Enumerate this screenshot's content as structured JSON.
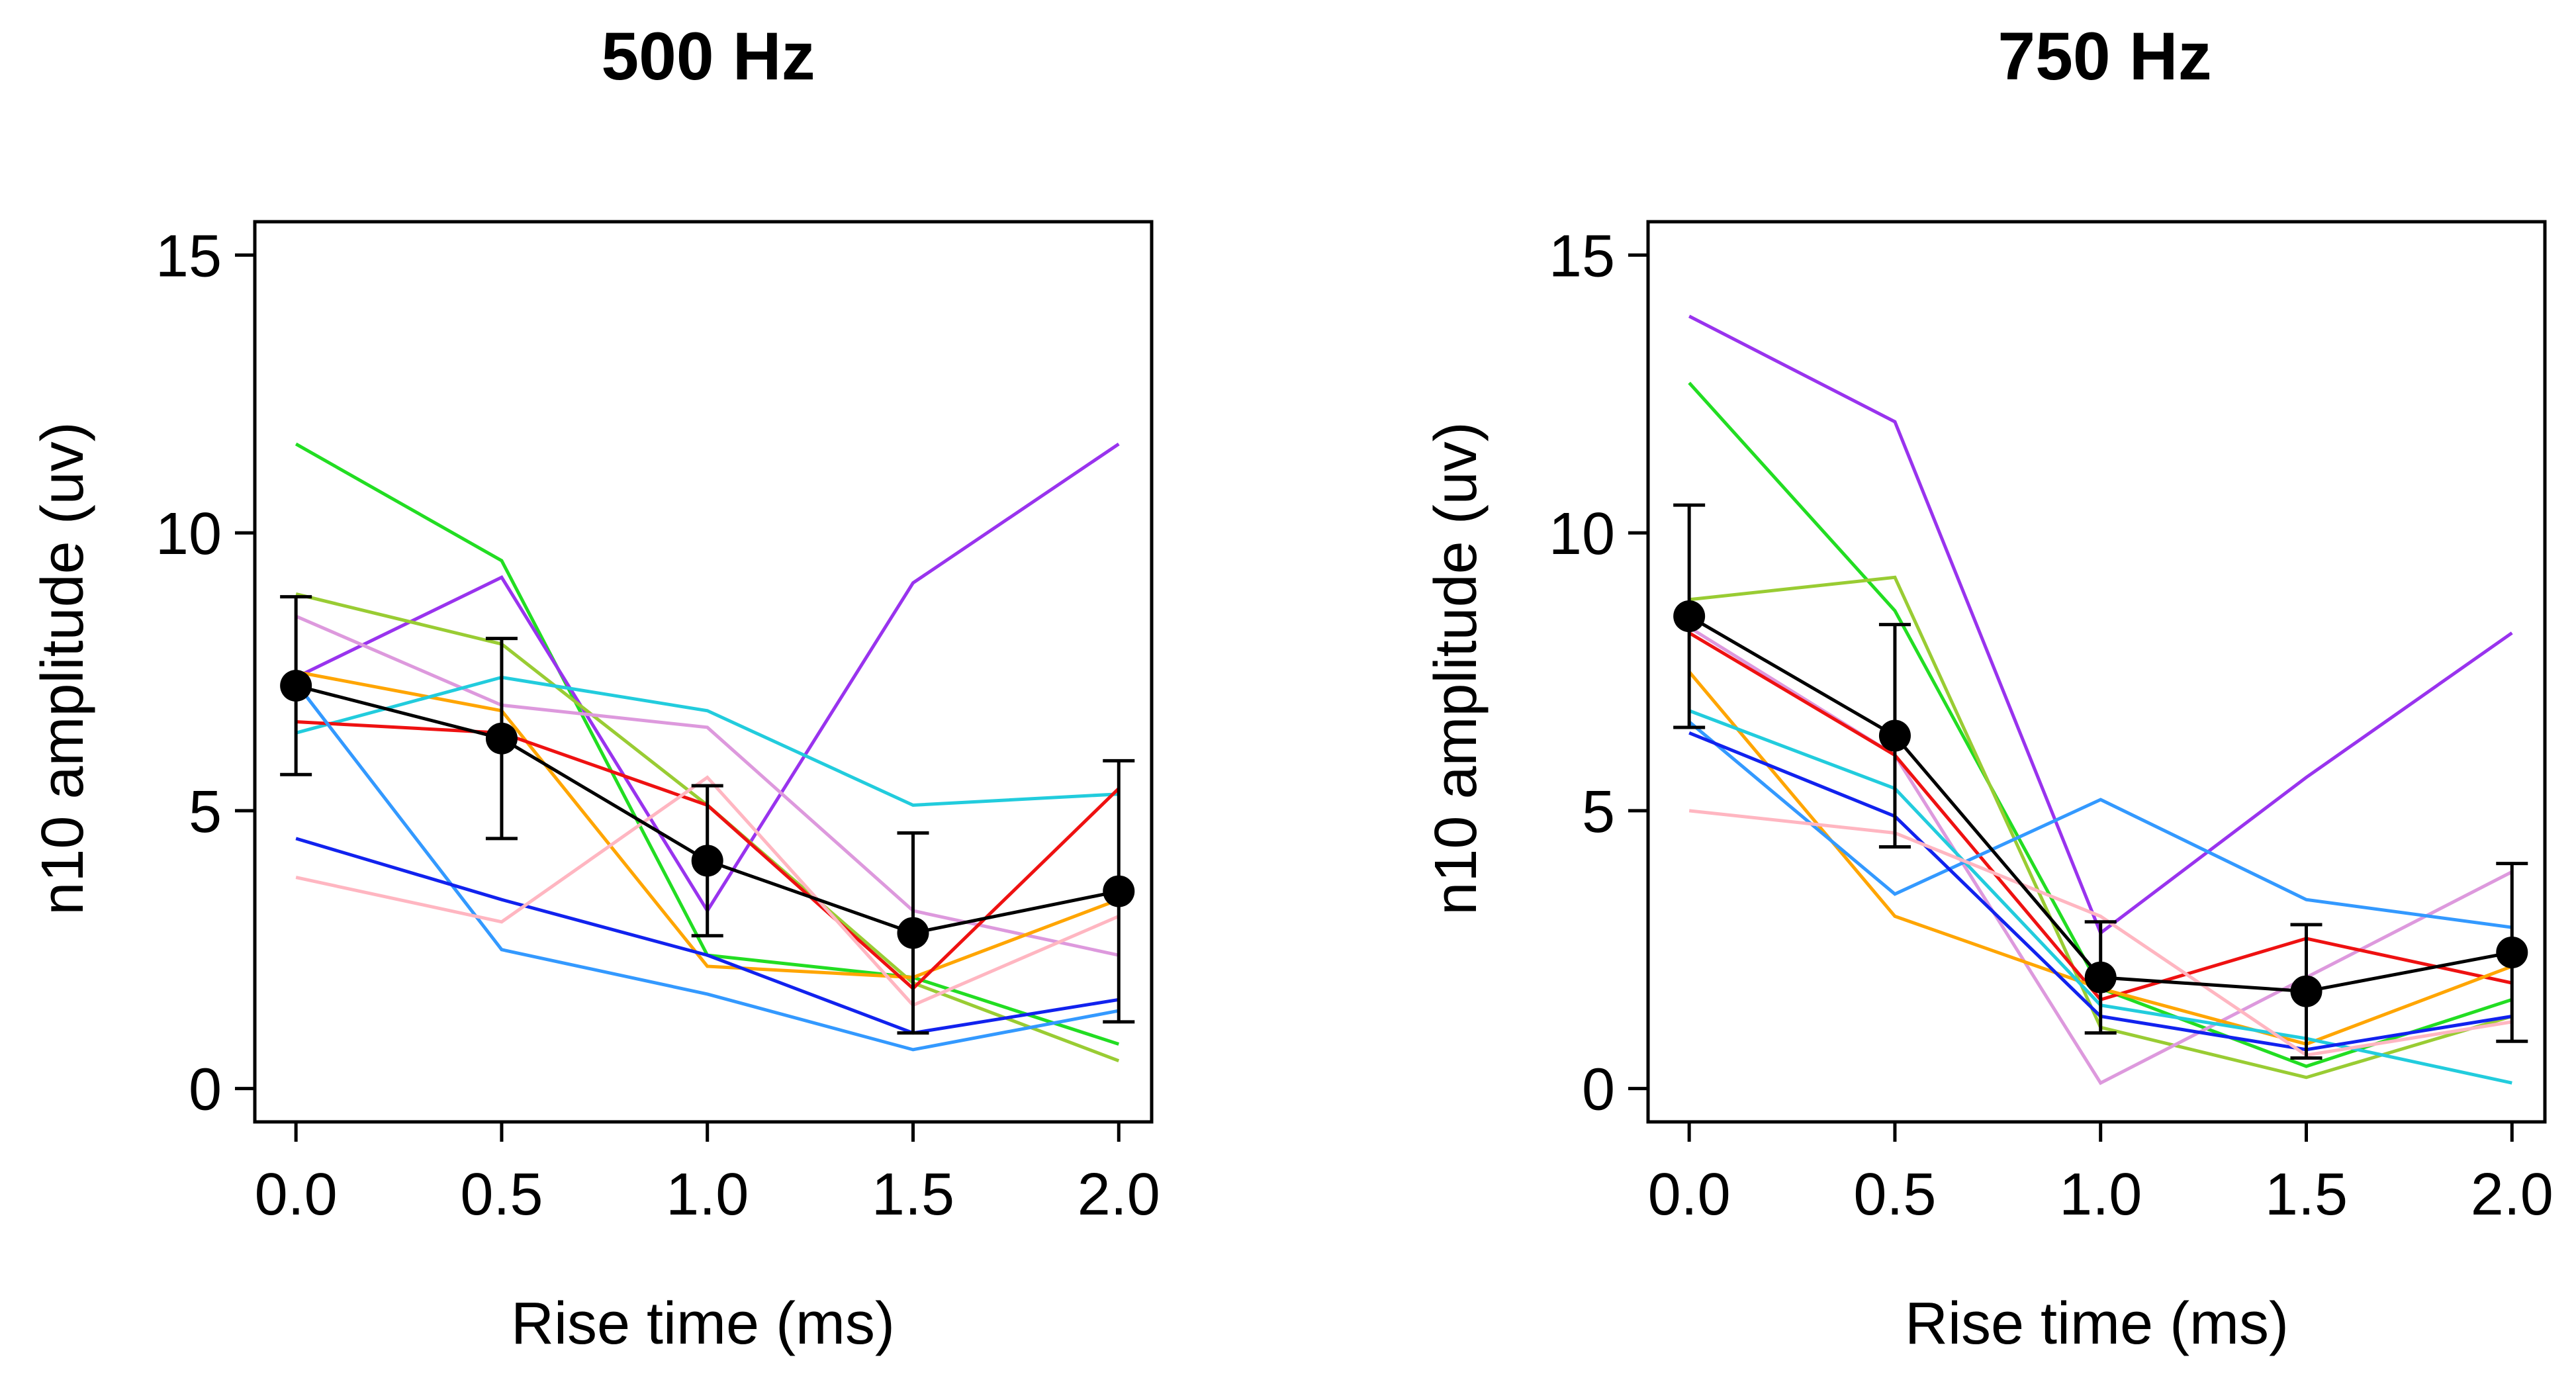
{
  "chart_data": [
    {
      "type": "line",
      "title": "500 Hz",
      "xlabel": "Rise time (ms)",
      "ylabel": "n10 amplitude (uv)",
      "x": [
        0.0,
        0.5,
        1.0,
        1.5,
        2.0
      ],
      "x_tick_labels": [
        "0.0",
        "0.5",
        "1.0",
        "1.5",
        "2.0"
      ],
      "y_ticks": [
        0,
        5,
        10,
        15
      ],
      "y_tick_labels": [
        "0",
        "5",
        "10",
        "15"
      ],
      "xlim": [
        -0.1,
        2.08
      ],
      "ylim": [
        -0.6,
        15.6
      ],
      "grid": false,
      "series": [
        {
          "name": "subject-green",
          "color": "#22dd22",
          "values": [
            11.6,
            9.5,
            2.4,
            2.0,
            0.8
          ]
        },
        {
          "name": "subject-purple",
          "color": "#9933ee",
          "values": [
            7.4,
            9.2,
            3.2,
            9.1,
            11.6
          ]
        },
        {
          "name": "subject-olive",
          "color": "#99cc33",
          "values": [
            8.9,
            8.0,
            5.1,
            1.9,
            0.5
          ]
        },
        {
          "name": "subject-violet",
          "color": "#dd99dd",
          "values": [
            8.5,
            6.9,
            6.5,
            3.2,
            2.4
          ]
        },
        {
          "name": "subject-orange",
          "color": "#ffa500",
          "values": [
            7.5,
            6.8,
            2.2,
            2.0,
            3.4
          ]
        },
        {
          "name": "subject-cyan",
          "color": "#22ccdd",
          "values": [
            6.4,
            7.4,
            6.8,
            5.1,
            5.3
          ]
        },
        {
          "name": "subject-red",
          "color": "#ee1111",
          "values": [
            6.6,
            6.4,
            5.1,
            1.8,
            5.4
          ]
        },
        {
          "name": "subject-skyblue",
          "color": "#3399ff",
          "values": [
            7.3,
            2.5,
            1.7,
            0.7,
            1.4
          ]
        },
        {
          "name": "subject-blue",
          "color": "#1122ee",
          "values": [
            4.5,
            3.4,
            2.4,
            1.0,
            1.6
          ]
        },
        {
          "name": "subject-pink",
          "color": "#ffb6c1",
          "values": [
            3.8,
            3.0,
            5.6,
            1.5,
            3.1
          ]
        }
      ],
      "mean": {
        "name": "mean",
        "color": "#000000",
        "values": [
          7.25,
          6.3,
          4.1,
          2.8,
          3.55
        ],
        "error": [
          1.6,
          1.8,
          1.35,
          1.8,
          2.35
        ]
      }
    },
    {
      "type": "line",
      "title": "750 Hz",
      "xlabel": "Rise time (ms)",
      "ylabel": "n10 amplitude (uv)",
      "x": [
        0.0,
        0.5,
        1.0,
        1.5,
        2.0
      ],
      "x_tick_labels": [
        "0.0",
        "0.5",
        "1.0",
        "1.5",
        "2.0"
      ],
      "y_ticks": [
        0,
        5,
        10,
        15
      ],
      "y_tick_labels": [
        "0",
        "5",
        "10",
        "15"
      ],
      "xlim": [
        -0.1,
        2.08
      ],
      "ylim": [
        -0.6,
        15.6
      ],
      "grid": false,
      "series": [
        {
          "name": "subject-purple",
          "color": "#9933ee",
          "values": [
            13.9,
            12.0,
            2.8,
            5.6,
            8.2
          ]
        },
        {
          "name": "subject-green",
          "color": "#22dd22",
          "values": [
            12.7,
            8.6,
            1.8,
            0.4,
            1.6
          ]
        },
        {
          "name": "subject-olive",
          "color": "#99cc33",
          "values": [
            8.8,
            9.2,
            1.1,
            0.2,
            1.3
          ]
        },
        {
          "name": "subject-violet",
          "color": "#dd99dd",
          "values": [
            8.3,
            6.0,
            0.1,
            2.0,
            3.9
          ]
        },
        {
          "name": "subject-red",
          "color": "#ee1111",
          "values": [
            8.2,
            6.0,
            1.6,
            2.7,
            1.9
          ]
        },
        {
          "name": "subject-orange",
          "color": "#ffa500",
          "values": [
            7.5,
            3.1,
            1.8,
            0.8,
            2.2
          ]
        },
        {
          "name": "subject-cyan",
          "color": "#22ccdd",
          "values": [
            6.8,
            5.4,
            1.5,
            0.9,
            0.1
          ]
        },
        {
          "name": "subject-skyblue",
          "color": "#3399ff",
          "values": [
            6.6,
            3.5,
            5.2,
            3.4,
            2.9
          ]
        },
        {
          "name": "subject-blue",
          "color": "#1122ee",
          "values": [
            6.4,
            4.9,
            1.3,
            0.7,
            1.3
          ]
        },
        {
          "name": "subject-pink",
          "color": "#ffb6c1",
          "values": [
            5.0,
            4.6,
            3.1,
            0.6,
            1.2
          ]
        }
      ],
      "mean": {
        "name": "mean",
        "color": "#000000",
        "values": [
          8.5,
          6.35,
          2.0,
          1.75,
          2.45
        ],
        "error": [
          2.0,
          2.0,
          1.0,
          1.2,
          1.6
        ]
      }
    }
  ]
}
